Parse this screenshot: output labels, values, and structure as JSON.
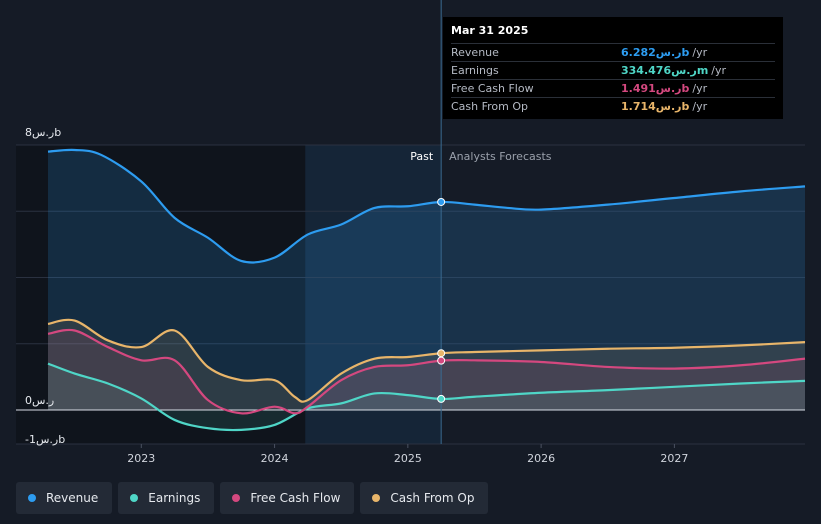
{
  "chart_data": {
    "type": "area",
    "y_axis": {
      "top_label": "ر.س8b",
      "zero_label": "ر.س0",
      "bottom_label": "-ر.س1b",
      "ylim": [
        -1,
        8
      ]
    },
    "x_axis": {
      "ticks": [
        "2023",
        "2024",
        "2025",
        "2026",
        "2027"
      ],
      "xlim": [
        2022.3,
        2027.98
      ]
    },
    "regions": {
      "past_label": "Past",
      "forecast_label": "Analysts Forecasts",
      "divider_x": 2025.25,
      "highlight_start": 2024.23
    },
    "series": [
      {
        "name": "Revenue",
        "color": "#2d9cf0",
        "x": [
          2022.3,
          2022.5,
          2022.7,
          2023.0,
          2023.25,
          2023.5,
          2023.75,
          2024.0,
          2024.25,
          2024.5,
          2024.75,
          2025.0,
          2025.25,
          2025.5,
          2025.75,
          2026.0,
          2026.5,
          2027.0,
          2027.5,
          2027.98
        ],
        "values": [
          7.8,
          7.85,
          7.7,
          6.9,
          5.8,
          5.2,
          4.5,
          4.6,
          5.3,
          5.6,
          6.1,
          6.15,
          6.28,
          6.2,
          6.1,
          6.05,
          6.2,
          6.4,
          6.6,
          6.75
        ]
      },
      {
        "name": "Earnings",
        "color": "#4fd6c7",
        "x": [
          2022.3,
          2022.5,
          2022.75,
          2023.0,
          2023.25,
          2023.5,
          2023.75,
          2024.0,
          2024.25,
          2024.5,
          2024.75,
          2025.0,
          2025.25,
          2025.5,
          2026.0,
          2026.5,
          2027.0,
          2027.5,
          2027.98
        ],
        "values": [
          1.4,
          1.1,
          0.8,
          0.35,
          -0.3,
          -0.55,
          -0.6,
          -0.45,
          0.05,
          0.2,
          0.5,
          0.45,
          0.334,
          0.4,
          0.52,
          0.6,
          0.7,
          0.8,
          0.88
        ]
      },
      {
        "name": "Free Cash Flow",
        "color": "#d4487f",
        "x": [
          2022.3,
          2022.5,
          2022.75,
          2023.0,
          2023.25,
          2023.5,
          2023.75,
          2024.0,
          2024.15,
          2024.25,
          2024.5,
          2024.75,
          2025.0,
          2025.25,
          2025.5,
          2026.0,
          2026.5,
          2027.0,
          2027.5,
          2027.98
        ],
        "values": [
          2.3,
          2.4,
          1.9,
          1.5,
          1.5,
          0.3,
          -0.1,
          0.1,
          -0.1,
          0.1,
          0.9,
          1.3,
          1.35,
          1.491,
          1.5,
          1.45,
          1.3,
          1.25,
          1.35,
          1.55
        ]
      },
      {
        "name": "Cash From Op",
        "color": "#e8b56a",
        "x": [
          2022.3,
          2022.5,
          2022.75,
          2023.0,
          2023.25,
          2023.5,
          2023.75,
          2024.0,
          2024.15,
          2024.25,
          2024.5,
          2024.75,
          2025.0,
          2025.25,
          2025.5,
          2026.0,
          2026.5,
          2027.0,
          2027.5,
          2027.98
        ],
        "values": [
          2.6,
          2.7,
          2.1,
          1.9,
          2.4,
          1.3,
          0.9,
          0.9,
          0.4,
          0.3,
          1.1,
          1.55,
          1.6,
          1.714,
          1.75,
          1.8,
          1.85,
          1.88,
          1.95,
          2.05
        ]
      }
    ]
  },
  "tooltip": {
    "date": "Mar 31 2025",
    "rows": [
      {
        "label": "Revenue",
        "value": "ر.س6.282b",
        "unit": "/yr",
        "color": "#2d9cf0"
      },
      {
        "label": "Earnings",
        "value": "ر.س334.476m",
        "unit": "/yr",
        "color": "#4fd6c7"
      },
      {
        "label": "Free Cash Flow",
        "value": "ر.س1.491b",
        "unit": "/yr",
        "color": "#d4487f"
      },
      {
        "label": "Cash From Op",
        "value": "ر.س1.714b",
        "unit": "/yr",
        "color": "#e8b56a"
      }
    ]
  },
  "legend": [
    {
      "label": "Revenue",
      "color": "#2d9cf0"
    },
    {
      "label": "Earnings",
      "color": "#4fd6c7"
    },
    {
      "label": "Free Cash Flow",
      "color": "#d4487f"
    },
    {
      "label": "Cash From Op",
      "color": "#e8b56a"
    }
  ]
}
